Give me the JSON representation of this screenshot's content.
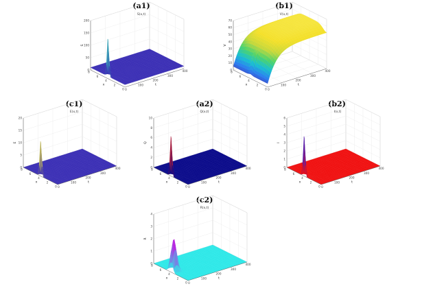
{
  "chart_data": [
    {
      "id": "a1",
      "panel": "(a1)",
      "title": "S(x,t)",
      "zlabel": "S",
      "xlabel": "x",
      "tlabel": "t",
      "type": "surface",
      "x_ticks": [
        "0",
        "2",
        "4",
        "6",
        "8"
      ],
      "t_ticks": [
        "0",
        "100",
        "200",
        "300",
        "400"
      ],
      "z_ticks": [
        "0",
        "50",
        "100",
        "150",
        "200"
      ],
      "zlim": [
        0,
        200
      ],
      "base_value": 10,
      "peak": {
        "x": 4,
        "t": 0,
        "z": 160
      },
      "surface_color": "#3b2fb5",
      "peak_color": "#35c9b5"
    },
    {
      "id": "b1",
      "panel": "(b1)",
      "title": "V(x,t)",
      "zlabel": "V",
      "xlabel": "x",
      "tlabel": "t",
      "type": "surface",
      "x_ticks": [
        "0",
        "2",
        "4",
        "6",
        "8"
      ],
      "t_ticks": [
        "0",
        "100",
        "200",
        "300",
        "400"
      ],
      "z_ticks": [
        "0",
        "10",
        "20",
        "30",
        "40",
        "50",
        "60",
        "70"
      ],
      "zlim": [
        0,
        70
      ],
      "plateau_value": 60,
      "initial_value": 5,
      "colormap": [
        "#3b2fb5",
        "#2a7ef0",
        "#18c0d0",
        "#4dd36a",
        "#c8d83a",
        "#f4e02a",
        "#f6e642"
      ]
    },
    {
      "id": "c1",
      "panel": "(c1)",
      "title": "E(x,t)",
      "zlabel": "E",
      "xlabel": "x",
      "tlabel": "t",
      "type": "surface",
      "x_ticks": [
        "0",
        "2",
        "4",
        "6",
        "8"
      ],
      "t_ticks": [
        "0",
        "100",
        "200",
        "300",
        "400"
      ],
      "z_ticks": [
        "0",
        "5",
        "10",
        "15",
        "20"
      ],
      "zlim": [
        0,
        20
      ],
      "base_value": 0,
      "peak": {
        "x": 4,
        "t": 0,
        "z": 14
      },
      "surface_color": "#3b2fb5",
      "peak_color": "#e8e03a"
    },
    {
      "id": "a2",
      "panel": "(a2)",
      "title": "Q(x,t)",
      "zlabel": "Q",
      "xlabel": "x",
      "tlabel": "t",
      "type": "surface",
      "x_ticks": [
        "0",
        "2",
        "4",
        "6",
        "8"
      ],
      "t_ticks": [
        "0",
        "100",
        "200",
        "300",
        "400"
      ],
      "z_ticks": [
        "0",
        "2",
        "4",
        "6",
        "8",
        "10"
      ],
      "zlim": [
        0,
        10
      ],
      "base_value": 0,
      "peak": {
        "x": 4,
        "t": 0,
        "z": 8
      },
      "surface_color": "#0a0a8a",
      "peak_color": "#e02020"
    },
    {
      "id": "b2",
      "panel": "(b2)",
      "title": "I(x,t)",
      "zlabel": "I",
      "xlabel": "x",
      "tlabel": "t",
      "type": "surface",
      "x_ticks": [
        "0",
        "2",
        "4",
        "6",
        "8"
      ],
      "t_ticks": [
        "0",
        "100",
        "200",
        "300",
        "400"
      ],
      "z_ticks": [
        "0",
        "1",
        "2",
        "3",
        "4",
        "5",
        "6"
      ],
      "zlim": [
        0,
        6
      ],
      "base_value": 0,
      "peak": {
        "x": 4,
        "t": 0,
        "z": 4.8
      },
      "surface_color": "#f01010",
      "peak_color": "#2020e0"
    },
    {
      "id": "c2",
      "panel": "(c2)",
      "title": "R(x,t)",
      "zlabel": "R",
      "xlabel": "x",
      "tlabel": "t",
      "type": "surface",
      "x_ticks": [
        "0",
        "2",
        "4",
        "6",
        "8"
      ],
      "t_ticks": [
        "0",
        "100",
        "200",
        "300",
        "400"
      ],
      "z_ticks": [
        "0",
        "1",
        "2",
        "3",
        "4"
      ],
      "zlim": [
        0,
        4
      ],
      "base_value": 0,
      "peak": {
        "x": 4,
        "t": 20,
        "z": 2.6
      },
      "surface_color": "#2ee8e8",
      "peak_color": "#c020e0"
    }
  ]
}
